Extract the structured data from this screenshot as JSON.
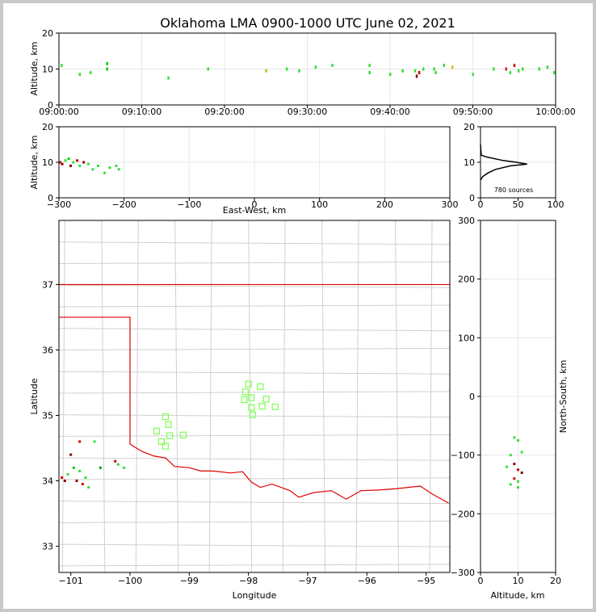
{
  "chart_data": {
    "title": "Oklahoma LMA 0900-1000 UTC June 02, 2021",
    "panels": [
      {
        "name": "altitude-vs-time",
        "type": "scatter",
        "xlabel": "",
        "ylabel": "Altitude, km",
        "xticks": [
          "09:00:00",
          "09:10:00",
          "09:20:00",
          "09:30:00",
          "09:40:00",
          "09:50:00",
          "10:00:00"
        ],
        "xlim_minutes": [
          0,
          60
        ],
        "ylim": [
          0,
          20
        ],
        "yticks": [
          0,
          10,
          20
        ],
        "points": [
          {
            "x": 0.3,
            "y": 11,
            "c": "#34e034"
          },
          {
            "x": 2.5,
            "y": 8.5,
            "c": "#34e034"
          },
          {
            "x": 3.8,
            "y": 9,
            "c": "#34e034"
          },
          {
            "x": 5.8,
            "y": 10,
            "c": "#00d000"
          },
          {
            "x": 5.8,
            "y": 11.5,
            "c": "#00d000"
          },
          {
            "x": 13.2,
            "y": 7.5,
            "c": "#34e034"
          },
          {
            "x": 18,
            "y": 10,
            "c": "#34e034"
          },
          {
            "x": 25,
            "y": 9.5,
            "c": "#aacc00"
          },
          {
            "x": 27.5,
            "y": 10,
            "c": "#34e034"
          },
          {
            "x": 29,
            "y": 9.5,
            "c": "#34e034"
          },
          {
            "x": 31,
            "y": 10.5,
            "c": "#34e034"
          },
          {
            "x": 33,
            "y": 11,
            "c": "#34e034"
          },
          {
            "x": 37.5,
            "y": 11,
            "c": "#34e034"
          },
          {
            "x": 37.5,
            "y": 9,
            "c": "#34e034"
          },
          {
            "x": 40,
            "y": 8.5,
            "c": "#34e034"
          },
          {
            "x": 41.5,
            "y": 9.5,
            "c": "#34e034"
          },
          {
            "x": 43,
            "y": 9.5,
            "c": "#34e034"
          },
          {
            "x": 43.2,
            "y": 8,
            "c": "#880000"
          },
          {
            "x": 43.5,
            "y": 9,
            "c": "#cc0000"
          },
          {
            "x": 44,
            "y": 10,
            "c": "#34e034"
          },
          {
            "x": 45.3,
            "y": 10,
            "c": "#34e034"
          },
          {
            "x": 45.5,
            "y": 9,
            "c": "#34e034"
          },
          {
            "x": 46.5,
            "y": 11,
            "c": "#34e034"
          },
          {
            "x": 47.5,
            "y": 10.5,
            "c": "#d0c000"
          },
          {
            "x": 50,
            "y": 8.5,
            "c": "#34e034"
          },
          {
            "x": 52.5,
            "y": 10,
            "c": "#34e034"
          },
          {
            "x": 54,
            "y": 10,
            "c": "#cc2222"
          },
          {
            "x": 54.5,
            "y": 9,
            "c": "#34e034"
          },
          {
            "x": 55,
            "y": 11,
            "c": "#cc0000"
          },
          {
            "x": 55.5,
            "y": 9.5,
            "c": "#34e034"
          },
          {
            "x": 56,
            "y": 10,
            "c": "#34e034"
          },
          {
            "x": 58,
            "y": 10,
            "c": "#34e034"
          },
          {
            "x": 59,
            "y": 10.5,
            "c": "#34e034"
          },
          {
            "x": 59.8,
            "y": 9,
            "c": "#34e034"
          }
        ]
      },
      {
        "name": "altitude-vs-ew",
        "type": "scatter",
        "xlabel": "East-West, km",
        "ylabel": "Altitude, km",
        "xlim": [
          -300,
          300
        ],
        "xticks": [
          -300,
          -200,
          -100,
          0,
          100,
          200,
          300
        ],
        "ylim": [
          0,
          20
        ],
        "yticks": [
          0,
          10,
          20
        ],
        "points": [
          {
            "x": -298,
            "y": 10,
            "c": "#cc0000"
          },
          {
            "x": -295,
            "y": 9.5,
            "c": "#880000"
          },
          {
            "x": -290,
            "y": 10.5,
            "c": "#34e034"
          },
          {
            "x": -285,
            "y": 11,
            "c": "#00d000"
          },
          {
            "x": -282,
            "y": 9,
            "c": "#880000"
          },
          {
            "x": -278,
            "y": 10,
            "c": "#34e034"
          },
          {
            "x": -272,
            "y": 10.5,
            "c": "#cc0000"
          },
          {
            "x": -268,
            "y": 9,
            "c": "#34e034"
          },
          {
            "x": -262,
            "y": 10,
            "c": "#880000"
          },
          {
            "x": -255,
            "y": 9.5,
            "c": "#34e034"
          },
          {
            "x": -248,
            "y": 8,
            "c": "#34e034"
          },
          {
            "x": -240,
            "y": 9,
            "c": "#34e034"
          },
          {
            "x": -230,
            "y": 7,
            "c": "#34e034"
          },
          {
            "x": -222,
            "y": 8.5,
            "c": "#34e034"
          },
          {
            "x": -212,
            "y": 9,
            "c": "#34e034"
          },
          {
            "x": -208,
            "y": 8,
            "c": "#34e034"
          }
        ]
      },
      {
        "name": "altitude-histogram",
        "type": "line",
        "xlim": [
          0,
          100
        ],
        "xticks": [
          0,
          50,
          100
        ],
        "ylim": [
          0,
          20
        ],
        "yticks": [
          0,
          10,
          20
        ],
        "annotation": "780 sources",
        "profile": [
          {
            "count": 0,
            "alt": 15
          },
          {
            "count": 1,
            "alt": 12
          },
          {
            "count": 8,
            "alt": 11.5
          },
          {
            "count": 30,
            "alt": 10.5
          },
          {
            "count": 48,
            "alt": 10
          },
          {
            "count": 62,
            "alt": 9.5
          },
          {
            "count": 40,
            "alt": 9
          },
          {
            "count": 20,
            "alt": 8
          },
          {
            "count": 10,
            "alt": 7
          },
          {
            "count": 3,
            "alt": 6
          },
          {
            "count": 0,
            "alt": 5
          }
        ]
      },
      {
        "name": "plan-view-map",
        "type": "scatter",
        "xlabel": "Longitude",
        "ylabel": "Latitude",
        "xlim": [
          -101.2,
          -94.6
        ],
        "ylim": [
          32.6,
          37.98
        ],
        "xticks": [
          -101,
          -100,
          -99,
          -98,
          -97,
          -96,
          -95
        ],
        "yticks": [
          33,
          34,
          35,
          36,
          37
        ],
        "points": [
          {
            "x": -101.15,
            "y": 34.05,
            "c": "#cc0000"
          },
          {
            "x": -101.1,
            "y": 34.0,
            "c": "#880000"
          },
          {
            "x": -101.05,
            "y": 34.1,
            "c": "#34e034"
          },
          {
            "x": -100.95,
            "y": 34.2,
            "c": "#00d000"
          },
          {
            "x": -100.9,
            "y": 34.0,
            "c": "#880000"
          },
          {
            "x": -100.85,
            "y": 34.15,
            "c": "#34e034"
          },
          {
            "x": -100.8,
            "y": 33.95,
            "c": "#cc0000"
          },
          {
            "x": -100.75,
            "y": 34.05,
            "c": "#34e034"
          },
          {
            "x": -100.7,
            "y": 33.9,
            "c": "#34e034"
          },
          {
            "x": -101.0,
            "y": 34.4,
            "c": "#880000"
          },
          {
            "x": -100.85,
            "y": 34.6,
            "c": "#cc0000"
          },
          {
            "x": -100.6,
            "y": 34.6,
            "c": "#34e034"
          },
          {
            "x": -100.5,
            "y": 34.2,
            "c": "#00a000"
          },
          {
            "x": -100.2,
            "y": 34.25,
            "c": "#34e034"
          },
          {
            "x": -100.25,
            "y": 34.3,
            "c": "#cc0000"
          },
          {
            "x": -100.1,
            "y": 34.2,
            "c": "#34e034"
          }
        ],
        "squares": [
          {
            "x": -98.0,
            "y": 35.48
          },
          {
            "x": -97.8,
            "y": 35.44
          },
          {
            "x": -98.05,
            "y": 35.36
          },
          {
            "x": -97.95,
            "y": 35.27
          },
          {
            "x": -98.07,
            "y": 35.24
          },
          {
            "x": -97.7,
            "y": 35.25
          },
          {
            "x": -97.77,
            "y": 35.14
          },
          {
            "x": -97.95,
            "y": 35.12
          },
          {
            "x": -97.55,
            "y": 35.13
          },
          {
            "x": -97.93,
            "y": 35.01
          },
          {
            "x": -99.4,
            "y": 34.98
          },
          {
            "x": -99.35,
            "y": 34.86
          },
          {
            "x": -99.55,
            "y": 34.76
          },
          {
            "x": -99.33,
            "y": 34.69
          },
          {
            "x": -99.1,
            "y": 34.7
          },
          {
            "x": -99.47,
            "y": 34.6
          },
          {
            "x": -99.4,
            "y": 34.53
          }
        ]
      },
      {
        "name": "ns-vs-altitude",
        "type": "scatter",
        "xlabel": "Altitude, km",
        "ylabel": "North-South, km",
        "xlim": [
          0,
          20
        ],
        "xticks": [
          0,
          10,
          20
        ],
        "ylim": [
          -300,
          300
        ],
        "yticks": [
          -300,
          -200,
          -100,
          0,
          100,
          200,
          300
        ],
        "points": [
          {
            "x": 9,
            "y": -70,
            "c": "#34e034"
          },
          {
            "x": 10,
            "y": -75,
            "c": "#34e034"
          },
          {
            "x": 8,
            "y": -100,
            "c": "#34e034"
          },
          {
            "x": 11,
            "y": -95,
            "c": "#34e034"
          },
          {
            "x": 7,
            "y": -120,
            "c": "#34e034"
          },
          {
            "x": 9,
            "y": -115,
            "c": "#880000"
          },
          {
            "x": 10,
            "y": -125,
            "c": "#cc0000"
          },
          {
            "x": 11,
            "y": -130,
            "c": "#880000"
          },
          {
            "x": 9,
            "y": -140,
            "c": "#cc0000"
          },
          {
            "x": 10,
            "y": -145,
            "c": "#34e034"
          },
          {
            "x": 8,
            "y": -150,
            "c": "#34e034"
          },
          {
            "x": 10,
            "y": -155,
            "c": "#34e034"
          }
        ]
      }
    ]
  }
}
